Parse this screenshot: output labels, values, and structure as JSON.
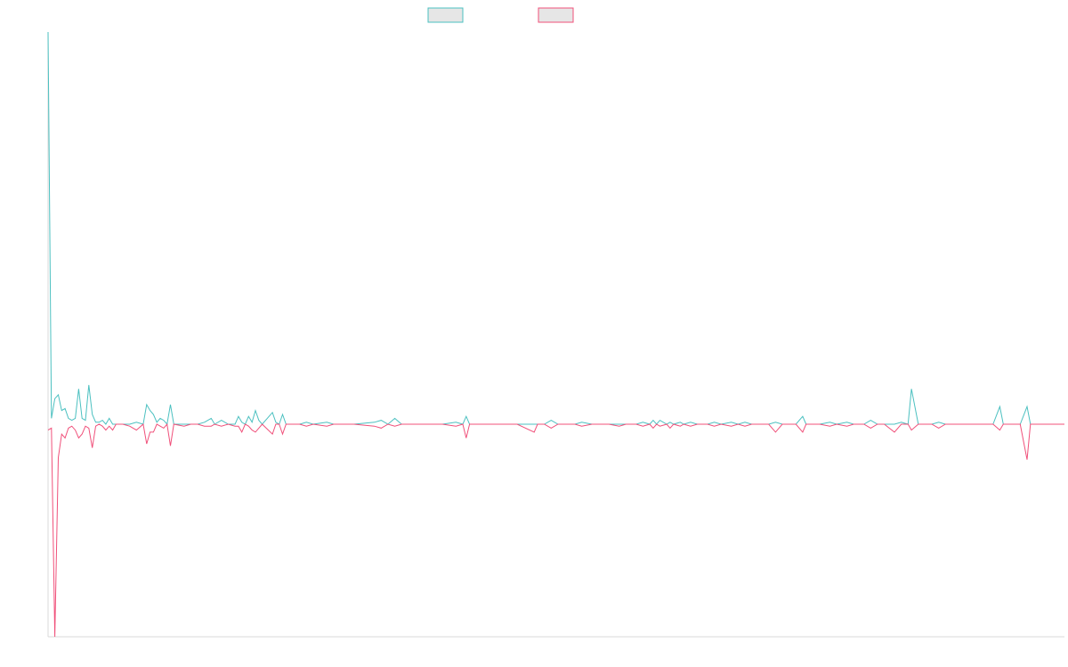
{
  "chart_data": {
    "type": "line",
    "title": "",
    "xlabel": "",
    "ylabel": "",
    "legend_position": "top-center",
    "grid": false,
    "ylim": [
      -100,
      100
    ],
    "x_count": 300,
    "series": [
      {
        "color": "#4bc0c0",
        "fill": "#e6e6e6",
        "points": [
          [
            0,
            200
          ],
          [
            1,
            3
          ],
          [
            2,
            13
          ],
          [
            3,
            15
          ],
          [
            4,
            7
          ],
          [
            5,
            8
          ],
          [
            6,
            3
          ],
          [
            7,
            2
          ],
          [
            8,
            3
          ],
          [
            9,
            18
          ],
          [
            10,
            3
          ],
          [
            11,
            2
          ],
          [
            12,
            20
          ],
          [
            13,
            5
          ],
          [
            14,
            1
          ],
          [
            15,
            1
          ],
          [
            16,
            2
          ],
          [
            17,
            0
          ],
          [
            18,
            3
          ],
          [
            19,
            0
          ],
          [
            20,
            0
          ],
          [
            22,
            0
          ],
          [
            24,
            0
          ],
          [
            26,
            1
          ],
          [
            28,
            0
          ],
          [
            29,
            10
          ],
          [
            30,
            7
          ],
          [
            31,
            5
          ],
          [
            32,
            1
          ],
          [
            33,
            3
          ],
          [
            34,
            2
          ],
          [
            35,
            0
          ],
          [
            36,
            10
          ],
          [
            37,
            0
          ],
          [
            40,
            0
          ],
          [
            42,
            0
          ],
          [
            44,
            0
          ],
          [
            46,
            1
          ],
          [
            48,
            3
          ],
          [
            49,
            0
          ],
          [
            51,
            2
          ],
          [
            53,
            0
          ],
          [
            55,
            0
          ],
          [
            56,
            4
          ],
          [
            57,
            1
          ],
          [
            58,
            0
          ],
          [
            59,
            4
          ],
          [
            60,
            1
          ],
          [
            61,
            7
          ],
          [
            62,
            2
          ],
          [
            63,
            0
          ],
          [
            66,
            6
          ],
          [
            67,
            1
          ],
          [
            68,
            0
          ],
          [
            69,
            5
          ],
          [
            70,
            0
          ],
          [
            72,
            0
          ],
          [
            74,
            0
          ],
          [
            76,
            1
          ],
          [
            78,
            0
          ],
          [
            82,
            1
          ],
          [
            84,
            0
          ],
          [
            90,
            0
          ],
          [
            96,
            1
          ],
          [
            98,
            2
          ],
          [
            100,
            0
          ],
          [
            102,
            3
          ],
          [
            104,
            0
          ],
          [
            108,
            0
          ],
          [
            112,
            0
          ],
          [
            116,
            0
          ],
          [
            120,
            1
          ],
          [
            122,
            0
          ],
          [
            123,
            4
          ],
          [
            124,
            0
          ],
          [
            130,
            0
          ],
          [
            136,
            0
          ],
          [
            138,
            0
          ],
          [
            143,
            0
          ],
          [
            146,
            0
          ],
          [
            148,
            2
          ],
          [
            150,
            0
          ],
          [
            155,
            0
          ],
          [
            157,
            1
          ],
          [
            160,
            0
          ],
          [
            165,
            0
          ],
          [
            168,
            0
          ],
          [
            170,
            0
          ],
          [
            173,
            0
          ],
          [
            175,
            1
          ],
          [
            177,
            0
          ],
          [
            178,
            2
          ],
          [
            179,
            0
          ],
          [
            180,
            2
          ],
          [
            182,
            0
          ],
          [
            183,
            1
          ],
          [
            184,
            0
          ],
          [
            186,
            1
          ],
          [
            187,
            0
          ],
          [
            189,
            1
          ],
          [
            191,
            0
          ],
          [
            194,
            0
          ],
          [
            196,
            1
          ],
          [
            198,
            0
          ],
          [
            201,
            1
          ],
          [
            203,
            0
          ],
          [
            205,
            1
          ],
          [
            207,
            0
          ],
          [
            210,
            0
          ],
          [
            212,
            0
          ],
          [
            214,
            1
          ],
          [
            216,
            0
          ],
          [
            220,
            0
          ],
          [
            222,
            4
          ],
          [
            223,
            0
          ],
          [
            224,
            0
          ],
          [
            227,
            0
          ],
          [
            230,
            1
          ],
          [
            232,
            0
          ],
          [
            235,
            1
          ],
          [
            237,
            0
          ],
          [
            240,
            0
          ],
          [
            242,
            2
          ],
          [
            244,
            0
          ],
          [
            246,
            0
          ],
          [
            249,
            0
          ],
          [
            251,
            1
          ],
          [
            253,
            0
          ],
          [
            254,
            18
          ],
          [
            256,
            0
          ],
          [
            260,
            0
          ],
          [
            262,
            1
          ],
          [
            264,
            0
          ],
          [
            268,
            0
          ],
          [
            272,
            0
          ],
          [
            275,
            0
          ],
          [
            278,
            0
          ],
          [
            280,
            9
          ],
          [
            281,
            0
          ],
          [
            286,
            0
          ],
          [
            288,
            9
          ],
          [
            289,
            0
          ],
          [
            292,
            0
          ],
          [
            295,
            0
          ],
          [
            299,
            0
          ]
        ]
      },
      {
        "color": "#f0507a",
        "fill": "#e6e6e6",
        "points": [
          [
            0,
            -3
          ],
          [
            1,
            -2
          ],
          [
            2,
            -108
          ],
          [
            3,
            -17
          ],
          [
            4,
            -5
          ],
          [
            5,
            -7
          ],
          [
            6,
            -2
          ],
          [
            7,
            -1
          ],
          [
            8,
            -3
          ],
          [
            9,
            -7
          ],
          [
            10,
            -5
          ],
          [
            11,
            -1
          ],
          [
            12,
            -2
          ],
          [
            13,
            -12
          ],
          [
            14,
            -1
          ],
          [
            15,
            0
          ],
          [
            16,
            -1
          ],
          [
            17,
            -3
          ],
          [
            18,
            -1
          ],
          [
            19,
            -3
          ],
          [
            20,
            0
          ],
          [
            22,
            0
          ],
          [
            24,
            -1
          ],
          [
            26,
            -3
          ],
          [
            28,
            0
          ],
          [
            29,
            -10
          ],
          [
            30,
            -4
          ],
          [
            31,
            -4
          ],
          [
            32,
            0
          ],
          [
            33,
            -1
          ],
          [
            34,
            -2
          ],
          [
            35,
            0
          ],
          [
            36,
            -11
          ],
          [
            37,
            0
          ],
          [
            40,
            -1
          ],
          [
            42,
            0
          ],
          [
            44,
            0
          ],
          [
            46,
            -1
          ],
          [
            48,
            -1
          ],
          [
            49,
            0
          ],
          [
            51,
            -1
          ],
          [
            53,
            0
          ],
          [
            55,
            -1
          ],
          [
            56,
            -1
          ],
          [
            57,
            -4
          ],
          [
            58,
            0
          ],
          [
            59,
            -1
          ],
          [
            60,
            -3
          ],
          [
            61,
            -4
          ],
          [
            62,
            -2
          ],
          [
            63,
            0
          ],
          [
            66,
            -5
          ],
          [
            67,
            0
          ],
          [
            68,
            0
          ],
          [
            69,
            -5
          ],
          [
            70,
            0
          ],
          [
            72,
            0
          ],
          [
            74,
            0
          ],
          [
            76,
            -1
          ],
          [
            78,
            0
          ],
          [
            82,
            -1
          ],
          [
            84,
            0
          ],
          [
            90,
            0
          ],
          [
            96,
            -1
          ],
          [
            98,
            -2
          ],
          [
            100,
            0
          ],
          [
            102,
            -1
          ],
          [
            104,
            0
          ],
          [
            108,
            0
          ],
          [
            112,
            0
          ],
          [
            116,
            0
          ],
          [
            120,
            -1
          ],
          [
            122,
            0
          ],
          [
            123,
            -7
          ],
          [
            124,
            0
          ],
          [
            130,
            0
          ],
          [
            136,
            0
          ],
          [
            138,
            0
          ],
          [
            143,
            -4
          ],
          [
            144,
            0
          ],
          [
            146,
            0
          ],
          [
            148,
            -2
          ],
          [
            150,
            0
          ],
          [
            155,
            0
          ],
          [
            157,
            -1
          ],
          [
            160,
            0
          ],
          [
            165,
            0
          ],
          [
            168,
            -1
          ],
          [
            170,
            0
          ],
          [
            173,
            0
          ],
          [
            175,
            -1
          ],
          [
            177,
            0
          ],
          [
            178,
            -2
          ],
          [
            179,
            0
          ],
          [
            180,
            -1
          ],
          [
            182,
            0
          ],
          [
            183,
            -2
          ],
          [
            184,
            0
          ],
          [
            186,
            -1
          ],
          [
            187,
            0
          ],
          [
            189,
            -1
          ],
          [
            191,
            0
          ],
          [
            194,
            0
          ],
          [
            196,
            -1
          ],
          [
            198,
            0
          ],
          [
            201,
            -1
          ],
          [
            203,
            0
          ],
          [
            205,
            -1
          ],
          [
            207,
            0
          ],
          [
            210,
            0
          ],
          [
            212,
            0
          ],
          [
            214,
            -4
          ],
          [
            216,
            0
          ],
          [
            220,
            0
          ],
          [
            222,
            -4
          ],
          [
            223,
            0
          ],
          [
            224,
            0
          ],
          [
            227,
            0
          ],
          [
            230,
            -1
          ],
          [
            232,
            0
          ],
          [
            235,
            -1
          ],
          [
            237,
            0
          ],
          [
            240,
            0
          ],
          [
            242,
            -2
          ],
          [
            244,
            0
          ],
          [
            246,
            0
          ],
          [
            249,
            -4
          ],
          [
            251,
            0
          ],
          [
            253,
            0
          ],
          [
            254,
            -3
          ],
          [
            256,
            0
          ],
          [
            260,
            0
          ],
          [
            262,
            -2
          ],
          [
            264,
            0
          ],
          [
            268,
            0
          ],
          [
            272,
            0
          ],
          [
            275,
            0
          ],
          [
            278,
            0
          ],
          [
            280,
            -3
          ],
          [
            281,
            0
          ],
          [
            286,
            0
          ],
          [
            288,
            -18
          ],
          [
            289,
            0
          ],
          [
            292,
            0
          ],
          [
            295,
            0
          ],
          [
            299,
            0
          ]
        ]
      }
    ]
  }
}
